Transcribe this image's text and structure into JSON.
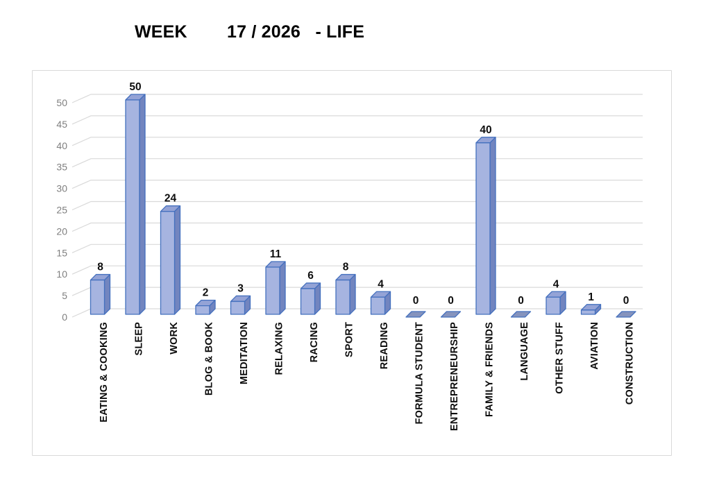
{
  "header": {
    "title": "WEEK        17 / 2026   - LIFE"
  },
  "chart_data": {
    "type": "bar",
    "variant": "3d-column",
    "title": "WEEK 17 / 2026 - LIFE",
    "categories": [
      "EATING & COOKING",
      "SLEEP",
      "WORK",
      "BLOG & BOOK",
      "MEDITATION",
      "RELAXING",
      "RACING",
      "SPORT",
      "READING",
      "FORMULA STUDENT",
      "ENTREPRENEURSHIP",
      "FAMILY & FRIENDS",
      "LANGUAGE",
      "OTHER STUFF",
      "AVIATION",
      "CONSTRUCTION"
    ],
    "values": [
      8,
      50,
      24,
      2,
      3,
      11,
      6,
      8,
      4,
      0,
      0,
      40,
      0,
      4,
      1,
      0
    ],
    "data_labels": [
      8,
      50,
      24,
      2,
      3,
      11,
      6,
      8,
      4,
      0,
      0,
      40,
      0,
      4,
      1,
      0
    ],
    "xlabel": "",
    "ylabel": "",
    "ylim": [
      0,
      50
    ],
    "ytick_step": 5,
    "yticks": [
      0,
      5,
      10,
      15,
      20,
      25,
      30,
      35,
      40,
      45,
      50
    ],
    "grid": true,
    "legend": false,
    "colors": {
      "bar_front": "#a6b4e0",
      "bar_top": "#94a3d6",
      "bar_side": "#7285bf",
      "bar_zero_slab": "#8593bd",
      "bar_border": "#4470be",
      "gridline": "#d9d9d9",
      "tick_label": "#7f7f7f",
      "value_label": "#0d0d0d",
      "category_label": "#0d0d0d",
      "frame_border": "#d9d9d9",
      "title_color": "#000000"
    }
  }
}
